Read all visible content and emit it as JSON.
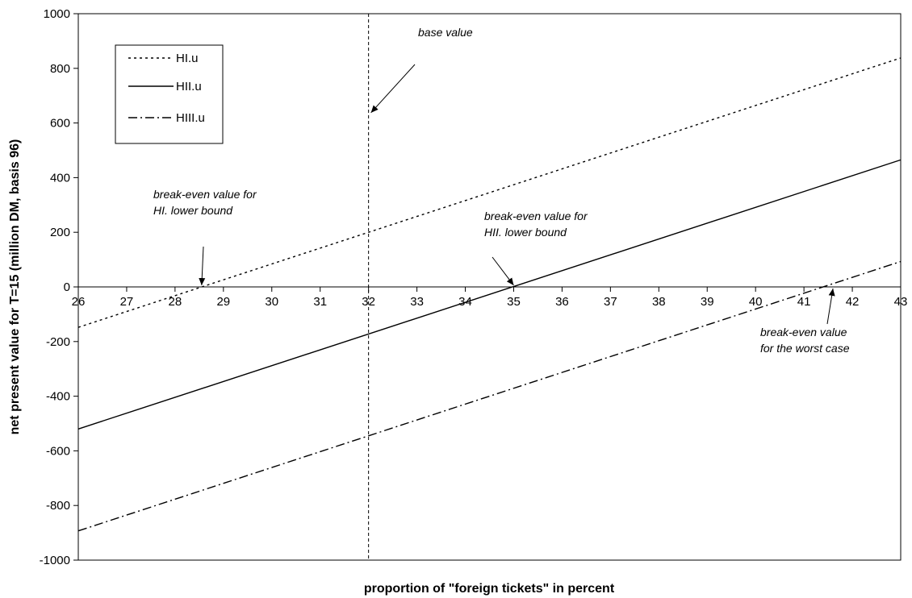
{
  "chart_data": {
    "type": "line",
    "xlabel": "proportion of \"foreign tickets\" in percent",
    "ylabel": "net present value for T=15 (million DM, basis 96)",
    "xlim": [
      26,
      43
    ],
    "ylim": [
      -1000,
      1000
    ],
    "x_ticks": [
      26,
      27,
      28,
      29,
      30,
      31,
      32,
      33,
      34,
      35,
      36,
      37,
      38,
      39,
      40,
      41,
      42,
      43
    ],
    "y_ticks": [
      -1000,
      -800,
      -600,
      -400,
      -200,
      0,
      200,
      400,
      600,
      800,
      1000
    ],
    "grid": false,
    "legend_position": "top-left",
    "series": [
      {
        "name": "HI.u",
        "style": "dotted",
        "x": [
          26,
          43
        ],
        "y": [
          -148,
          838
        ]
      },
      {
        "name": "HII.u",
        "style": "solid",
        "x": [
          26,
          43
        ],
        "y": [
          -520,
          465
        ]
      },
      {
        "name": "HIII.u",
        "style": "dash-dot",
        "x": [
          26,
          43
        ],
        "y": [
          -893,
          93
        ]
      }
    ],
    "reference_line": {
      "x": 32,
      "style": "dashed"
    },
    "annotations": [
      {
        "id": "base",
        "text_lines": [
          "base value"
        ],
        "target": [
          32,
          620
        ]
      },
      {
        "id": "be-hi",
        "text_lines": [
          "break-even value for",
          "HI. lower bound"
        ],
        "target": [
          28.55,
          0
        ]
      },
      {
        "id": "be-hii",
        "text_lines": [
          "break-even value for",
          "HII. lower bound"
        ],
        "target": [
          35,
          0
        ]
      },
      {
        "id": "be-worst",
        "text_lines": [
          "break-even value",
          "for the worst case"
        ],
        "target": [
          41.6,
          0
        ]
      }
    ]
  }
}
